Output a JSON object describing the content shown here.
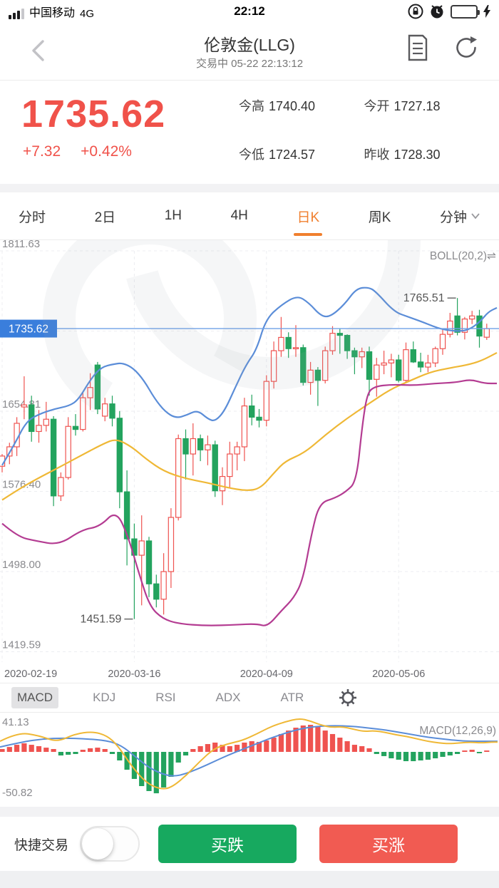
{
  "status_bar": {
    "carrier": "中国移动",
    "network": "4G",
    "time": "22:12"
  },
  "header": {
    "title": "伦敦金(LLG)",
    "subtitle": "交易中 05-22 22:13:12"
  },
  "quote": {
    "price": "1735.62",
    "change": "+7.32",
    "change_pct": "+0.42%",
    "stats": [
      {
        "label": "今高",
        "value": "1740.40"
      },
      {
        "label": "今开",
        "value": "1727.18"
      },
      {
        "label": "今低",
        "value": "1724.57"
      },
      {
        "label": "昨收",
        "value": "1728.30"
      }
    ]
  },
  "period_tabs": {
    "items": [
      {
        "label": "分时"
      },
      {
        "label": "2日"
      },
      {
        "label": "1H"
      },
      {
        "label": "4H"
      },
      {
        "label": "日K",
        "active": true
      },
      {
        "label": "周K"
      },
      {
        "label": "分钟",
        "has_dropdown": true
      }
    ]
  },
  "indicator_tabs": {
    "items": [
      {
        "label": "MACD",
        "active": true
      },
      {
        "label": "KDJ"
      },
      {
        "label": "RSI"
      },
      {
        "label": "ADX"
      },
      {
        "label": "ATR"
      }
    ]
  },
  "trade_bar": {
    "quick_trade_label": "快捷交易",
    "toggle_on": false,
    "buy_down_label": "买跌",
    "buy_up_label": "买涨"
  },
  "colors": {
    "price_red": "#f0524a",
    "up": "#ef5350",
    "down": "#23a35e",
    "boll_upper": "#5b8dd8",
    "boll_mid": "#efb836",
    "boll_lower": "#b43c92",
    "price_line": "#6ea0e6",
    "price_tag": "#3a7edc",
    "accent_orange": "#f07f2e",
    "buy_down_btn": "#17a95f",
    "buy_up_btn": "#f15b52",
    "axis_text": "#8a8a8e",
    "grid": "#ecedf1"
  },
  "chart_data": {
    "type": "candlestick",
    "title": "伦敦金(LLG) 日K",
    "boll_legend": "BOLL(20,2)⇌",
    "last_price": "1735.62",
    "y_axis": {
      "labels": [
        1811.63,
        1654.81,
        1576.4,
        1498.0,
        1419.59
      ],
      "grid_levels": [
        1811.63,
        1733.22,
        1654.81,
        1576.4,
        1498.0,
        1419.59
      ]
    },
    "x_axis": {
      "labels": [
        {
          "text": "2020-02-19",
          "i": 0,
          "align": "left"
        },
        {
          "text": "2020-03-16",
          "i": 18,
          "align": "middle"
        },
        {
          "text": "2020-04-09",
          "i": 36,
          "align": "middle"
        },
        {
          "text": "2020-05-06",
          "i": 54,
          "align": "middle"
        }
      ]
    },
    "annotations": [
      {
        "text": "1765.51",
        "i": 62,
        "price": 1765.51,
        "side": "high"
      },
      {
        "text": "1451.59",
        "i": 18,
        "price": 1451.59,
        "side": "low"
      }
    ],
    "candles": [
      [
        1601,
        1613,
        1595,
        1611
      ],
      [
        1611,
        1624,
        1603,
        1620
      ],
      [
        1620,
        1649,
        1611,
        1643
      ],
      [
        1659,
        1689,
        1647,
        1661
      ],
      [
        1661,
        1670,
        1625,
        1635
      ],
      [
        1635,
        1656,
        1624,
        1641
      ],
      [
        1641,
        1664,
        1635,
        1647
      ],
      [
        1647,
        1650,
        1562,
        1572
      ],
      [
        1572,
        1595,
        1567,
        1590
      ],
      [
        1590,
        1649,
        1588,
        1640
      ],
      [
        1640,
        1652,
        1631,
        1637
      ],
      [
        1637,
        1674,
        1635,
        1668
      ],
      [
        1668,
        1692,
        1656,
        1678
      ],
      [
        1700,
        1703,
        1652,
        1657
      ],
      [
        1650,
        1668,
        1645,
        1662
      ],
      [
        1662,
        1670,
        1640,
        1648
      ],
      [
        1648,
        1655,
        1560,
        1576
      ],
      [
        1576,
        1597,
        1504,
        1530
      ],
      [
        1530,
        1545,
        1451.59,
        1514
      ],
      [
        1514,
        1553,
        1465,
        1528
      ],
      [
        1528,
        1532,
        1473,
        1486
      ],
      [
        1486,
        1495,
        1463,
        1471
      ],
      [
        1471,
        1516,
        1456,
        1498
      ],
      [
        1498,
        1560,
        1482,
        1551
      ],
      [
        1551,
        1632,
        1548,
        1628
      ],
      [
        1628,
        1637,
        1588,
        1613
      ],
      [
        1613,
        1643,
        1592,
        1628
      ],
      [
        1628,
        1632,
        1606,
        1617
      ],
      [
        1617,
        1631,
        1602,
        1622
      ],
      [
        1622,
        1626,
        1571,
        1577
      ],
      [
        1577,
        1600,
        1563,
        1591
      ],
      [
        1591,
        1625,
        1580,
        1613
      ],
      [
        1613,
        1625,
        1597,
        1620
      ],
      [
        1620,
        1668,
        1606,
        1660
      ],
      [
        1660,
        1671,
        1641,
        1649
      ],
      [
        1649,
        1657,
        1639,
        1646
      ],
      [
        1646,
        1690,
        1640,
        1684
      ],
      [
        1684,
        1723,
        1677,
        1714
      ],
      [
        1714,
        1747,
        1708,
        1727
      ],
      [
        1727,
        1732,
        1707,
        1716
      ],
      [
        1716,
        1739,
        1708,
        1717
      ],
      [
        1717,
        1720,
        1680,
        1683
      ],
      [
        1683,
        1703,
        1671,
        1695
      ],
      [
        1695,
        1698,
        1660,
        1685
      ],
      [
        1685,
        1718,
        1682,
        1714
      ],
      [
        1714,
        1738,
        1710,
        1731
      ],
      [
        1731,
        1736,
        1711,
        1729
      ],
      [
        1729,
        1730,
        1706,
        1714
      ],
      [
        1714,
        1717,
        1691,
        1708
      ],
      [
        1708,
        1717,
        1697,
        1713
      ],
      [
        1713,
        1718,
        1670,
        1686
      ],
      [
        1686,
        1707,
        1669,
        1700
      ],
      [
        1700,
        1714,
        1691,
        1702
      ],
      [
        1702,
        1711,
        1688,
        1705
      ],
      [
        1705,
        1710,
        1683,
        1685
      ],
      [
        1685,
        1722,
        1683,
        1715
      ],
      [
        1715,
        1723,
        1702,
        1703
      ],
      [
        1703,
        1712,
        1693,
        1698
      ],
      [
        1698,
        1710,
        1693,
        1702
      ],
      [
        1702,
        1718,
        1698,
        1716
      ],
      [
        1716,
        1736,
        1710,
        1730
      ],
      [
        1730,
        1751,
        1727,
        1743
      ],
      [
        1748,
        1765.51,
        1729,
        1732
      ],
      [
        1732,
        1747,
        1725,
        1745
      ],
      [
        1745,
        1753,
        1740,
        1748
      ],
      [
        1748,
        1754,
        1717,
        1728.3
      ],
      [
        1727.18,
        1740.4,
        1724.57,
        1735.62
      ]
    ],
    "bands": {
      "upper": [
        [
          3,
          1602
        ],
        [
          20,
          1622
        ],
        [
          37,
          1645
        ],
        [
          55,
          1652
        ],
        [
          76,
          1657
        ],
        [
          97,
          1660
        ],
        [
          110,
          1666
        ],
        [
          127,
          1686
        ],
        [
          142,
          1698
        ],
        [
          160,
          1701
        ],
        [
          172,
          1702
        ],
        [
          187,
          1697
        ],
        [
          202,
          1685
        ],
        [
          217,
          1667
        ],
        [
          232,
          1654
        ],
        [
          247,
          1648
        ],
        [
          262,
          1651
        ],
        [
          277,
          1656
        ],
        [
          292,
          1647
        ],
        [
          302,
          1645
        ],
        [
          315,
          1655
        ],
        [
          330,
          1678
        ],
        [
          345,
          1700
        ],
        [
          360,
          1715
        ],
        [
          373,
          1745
        ],
        [
          395,
          1759
        ],
        [
          417,
          1768
        ],
        [
          433,
          1761
        ],
        [
          450,
          1748
        ],
        [
          463,
          1747
        ],
        [
          483,
          1759
        ],
        [
          500,
          1775
        ],
        [
          517,
          1776
        ],
        [
          527,
          1772
        ],
        [
          553,
          1752
        ],
        [
          573,
          1747
        ],
        [
          593,
          1742
        ],
        [
          607,
          1738
        ],
        [
          620,
          1735
        ],
        [
          640,
          1733
        ],
        [
          657,
          1734
        ],
        [
          673,
          1742
        ],
        [
          685,
          1752
        ],
        [
          697,
          1756
        ]
      ],
      "middle": [
        [
          3,
          1568
        ],
        [
          25,
          1578
        ],
        [
          50,
          1588
        ],
        [
          83,
          1600
        ],
        [
          115,
          1612
        ],
        [
          145,
          1623
        ],
        [
          163,
          1628
        ],
        [
          185,
          1620
        ],
        [
          205,
          1608
        ],
        [
          230,
          1596
        ],
        [
          260,
          1589
        ],
        [
          290,
          1585
        ],
        [
          320,
          1580
        ],
        [
          345,
          1577
        ],
        [
          365,
          1579
        ],
        [
          385,
          1595
        ],
        [
          400,
          1606
        ],
        [
          427,
          1614
        ],
        [
          457,
          1632
        ],
        [
          487,
          1648
        ],
        [
          517,
          1662
        ],
        [
          547,
          1676
        ],
        [
          573,
          1684
        ],
        [
          603,
          1693
        ],
        [
          630,
          1697
        ],
        [
          655,
          1700
        ],
        [
          675,
          1704
        ],
        [
          697,
          1712
        ]
      ],
      "lower": [
        [
          3,
          1545
        ],
        [
          25,
          1532
        ],
        [
          50,
          1528
        ],
        [
          83,
          1524
        ],
        [
          115,
          1539
        ],
        [
          140,
          1542
        ],
        [
          163,
          1558
        ],
        [
          180,
          1532
        ],
        [
          195,
          1496
        ],
        [
          210,
          1464
        ],
        [
          228,
          1452
        ],
        [
          250,
          1447
        ],
        [
          290,
          1445
        ],
        [
          330,
          1446
        ],
        [
          360,
          1447
        ],
        [
          375,
          1444
        ],
        [
          395,
          1460
        ],
        [
          412,
          1472
        ],
        [
          425,
          1490
        ],
        [
          437,
          1535
        ],
        [
          448,
          1565
        ],
        [
          470,
          1570
        ],
        [
          485,
          1576
        ],
        [
          500,
          1586
        ],
        [
          508,
          1640
        ],
        [
          515,
          1672
        ],
        [
          525,
          1679
        ],
        [
          550,
          1681
        ],
        [
          580,
          1680
        ],
        [
          610,
          1682
        ],
        [
          640,
          1683
        ],
        [
          660,
          1686
        ],
        [
          680,
          1682
        ],
        [
          697,
          1682
        ]
      ]
    },
    "macd": {
      "legend": "MACD(12,26,9)",
      "max_label": "41.13",
      "min_label": "-50.82",
      "histogram": [
        3.5,
        6,
        8.7,
        10.5,
        8.7,
        7,
        5.2,
        3.5,
        -4.4,
        -3.5,
        -2.6,
        2.6,
        4.4,
        5.2,
        3.5,
        -2.6,
        -10.5,
        -21.9,
        -33.2,
        -42,
        -48.1,
        -50.82,
        -43.7,
        -30.6,
        -13.1,
        -4.4,
        3.5,
        7,
        9.6,
        11.4,
        8.7,
        7,
        8.7,
        11.4,
        13.1,
        12.2,
        14,
        17.5,
        21.9,
        26.2,
        29.7,
        32.4,
        33.2,
        30.6,
        26.2,
        21.9,
        17.5,
        13.1,
        8.7,
        7,
        4.4,
        -2.6,
        -5.2,
        -7.9,
        -9.6,
        -11.4,
        -11.4,
        -10.5,
        -9.6,
        -7.9,
        -6.1,
        -4.4,
        -2.6,
        1.7,
        2.6,
        -1.7,
        1.7
      ],
      "dif": [
        [
          0,
          13
        ],
        [
          25,
          24
        ],
        [
          55,
          20
        ],
        [
          80,
          12
        ],
        [
          105,
          22
        ],
        [
          130,
          25
        ],
        [
          150,
          20
        ],
        [
          165,
          8
        ],
        [
          185,
          -18
        ],
        [
          205,
          -38
        ],
        [
          225,
          -46
        ],
        [
          240,
          -44
        ],
        [
          260,
          -30
        ],
        [
          280,
          -12
        ],
        [
          300,
          4
        ],
        [
          320,
          10
        ],
        [
          340,
          14
        ],
        [
          360,
          22
        ],
        [
          380,
          31
        ],
        [
          400,
          37
        ],
        [
          420,
          41.13
        ],
        [
          435,
          38
        ],
        [
          450,
          33
        ],
        [
          465,
          30
        ],
        [
          480,
          31
        ],
        [
          495,
          28
        ],
        [
          510,
          25
        ],
        [
          525,
          26
        ],
        [
          540,
          24
        ],
        [
          555,
          21
        ],
        [
          570,
          19
        ],
        [
          585,
          16
        ],
        [
          600,
          13
        ],
        [
          615,
          11
        ],
        [
          630,
          10
        ],
        [
          645,
          11
        ],
        [
          660,
          12
        ],
        [
          675,
          11
        ],
        [
          690,
          12
        ],
        [
          698,
          12
        ]
      ],
      "dea": [
        [
          0,
          6
        ],
        [
          30,
          12
        ],
        [
          60,
          16
        ],
        [
          90,
          17
        ],
        [
          120,
          16
        ],
        [
          150,
          14
        ],
        [
          170,
          8
        ],
        [
          190,
          -6
        ],
        [
          210,
          -20
        ],
        [
          230,
          -28
        ],
        [
          245,
          -30
        ],
        [
          260,
          -27
        ],
        [
          280,
          -20
        ],
        [
          300,
          -12
        ],
        [
          320,
          -4
        ],
        [
          340,
          3
        ],
        [
          360,
          10
        ],
        [
          380,
          17
        ],
        [
          400,
          23
        ],
        [
          420,
          28
        ],
        [
          440,
          31
        ],
        [
          460,
          32
        ],
        [
          480,
          32
        ],
        [
          500,
          31
        ],
        [
          520,
          29
        ],
        [
          540,
          27
        ],
        [
          560,
          24
        ],
        [
          580,
          21
        ],
        [
          600,
          18
        ],
        [
          620,
          16
        ],
        [
          640,
          14
        ],
        [
          660,
          13
        ],
        [
          680,
          13
        ],
        [
          698,
          13
        ]
      ]
    }
  }
}
